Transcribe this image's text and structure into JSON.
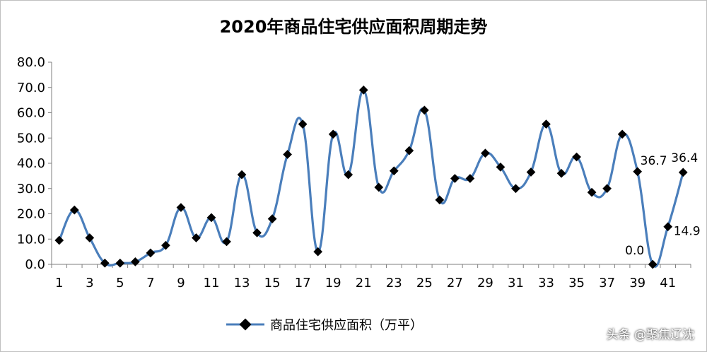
{
  "chart_data": {
    "type": "line",
    "title": "2020年商品住宅供应面积周期走势",
    "xlabel": "",
    "ylabel": "",
    "ylim": [
      0,
      80
    ],
    "yticks": [
      "0.0",
      "10.0",
      "20.0",
      "30.0",
      "40.0",
      "50.0",
      "60.0",
      "70.0",
      "80.0"
    ],
    "xlim": [
      1,
      42
    ],
    "xticks": [
      "1",
      "3",
      "5",
      "7",
      "9",
      "11",
      "13",
      "15",
      "17",
      "19",
      "21",
      "23",
      "25",
      "27",
      "29",
      "31",
      "33",
      "35",
      "37",
      "39",
      "41"
    ],
    "x": [
      1,
      2,
      3,
      4,
      5,
      6,
      7,
      8,
      9,
      10,
      11,
      12,
      13,
      14,
      15,
      16,
      17,
      18,
      19,
      20,
      21,
      22,
      23,
      24,
      25,
      26,
      27,
      28,
      29,
      30,
      31,
      32,
      33,
      34,
      35,
      36,
      37,
      38,
      39,
      40,
      41,
      42
    ],
    "series": [
      {
        "name": "商品住宅供应面积（万平）",
        "color": "#4a7ebb",
        "values": [
          9.5,
          21.5,
          10.5,
          0.5,
          0.5,
          1.0,
          4.5,
          7.5,
          22.5,
          10.5,
          18.5,
          9.0,
          35.5,
          12.5,
          18.0,
          43.5,
          55.5,
          5.0,
          51.5,
          35.5,
          69.0,
          30.5,
          37.0,
          45.0,
          61.0,
          25.5,
          34.0,
          34.0,
          44.0,
          38.5,
          30.0,
          36.5,
          55.5,
          36.0,
          42.5,
          28.5,
          30.0,
          51.5,
          36.7,
          0.0,
          14.9,
          36.4
        ]
      }
    ],
    "data_labels": [
      {
        "x": 39,
        "text": "36.7"
      },
      {
        "x": 40,
        "text": "0.0"
      },
      {
        "x": 41,
        "text": "14.9"
      },
      {
        "x": 42,
        "text": "36.4"
      }
    ],
    "legend": {
      "position": "bottom",
      "label": "商品住宅供应面积（万平）"
    },
    "grid": false
  },
  "watermark": "头条 @聚焦辽沈"
}
